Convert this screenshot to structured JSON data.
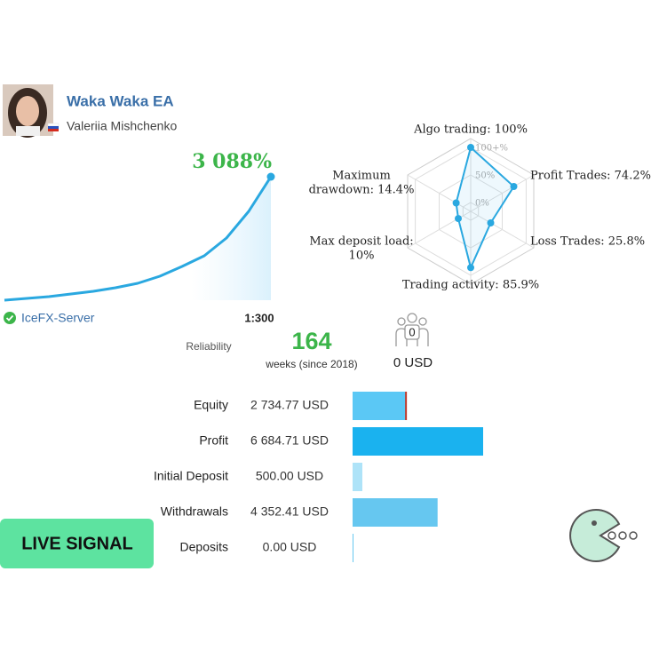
{
  "header": {
    "title": "Waka Waka EA",
    "author": "Valeriia Mishchenko"
  },
  "growth": {
    "value_label": "3 088%",
    "curve": [
      0,
      44,
      89,
      155,
      222,
      311,
      422,
      600,
      844,
      1111,
      1555,
      2221,
      3088
    ]
  },
  "account": {
    "server": "IceFX-Server",
    "leverage": "1:300",
    "reliability_label": "Reliability",
    "weeks": "164",
    "weeks_caption": "weeks (since 2018)",
    "subscribers": "0",
    "subscriber_funds": "0 USD"
  },
  "radar": {
    "axes": [
      {
        "lines": [
          "Algo trading: 100%"
        ],
        "value": 100
      },
      {
        "lines": [
          "Profit Trades: 74.2%"
        ],
        "value": 74.2
      },
      {
        "lines": [
          "Loss Trades: 25.8%"
        ],
        "value": 25.8
      },
      {
        "lines": [
          "Trading activity: 85.9%"
        ],
        "value": 85.9
      },
      {
        "lines": [
          "Max deposit load:",
          "10%"
        ],
        "value": 10
      },
      {
        "lines": [
          "Maximum",
          "drawdown: 14.4%"
        ],
        "value": 14.4
      }
    ],
    "ticks": [
      {
        "value": 100,
        "label": "100+%"
      },
      {
        "value": 50,
        "label": "50%"
      },
      {
        "value": 0,
        "label": "0%"
      }
    ]
  },
  "stats": {
    "rows": [
      {
        "label": "Equity",
        "value": 2734.77,
        "value_label": "2 734.77 USD"
      },
      {
        "label": "Profit",
        "value": 6684.71,
        "value_label": "6 684.71 USD"
      },
      {
        "label": "Initial Deposit",
        "value": 500,
        "value_label": "500.00 USD"
      },
      {
        "label": "Withdrawals",
        "value": 4352.41,
        "value_label": "4 352.41 USD"
      },
      {
        "label": "Deposits",
        "value": 0,
        "value_label": "0.00 USD"
      }
    ]
  },
  "badge": "LIVE SIGNAL"
}
